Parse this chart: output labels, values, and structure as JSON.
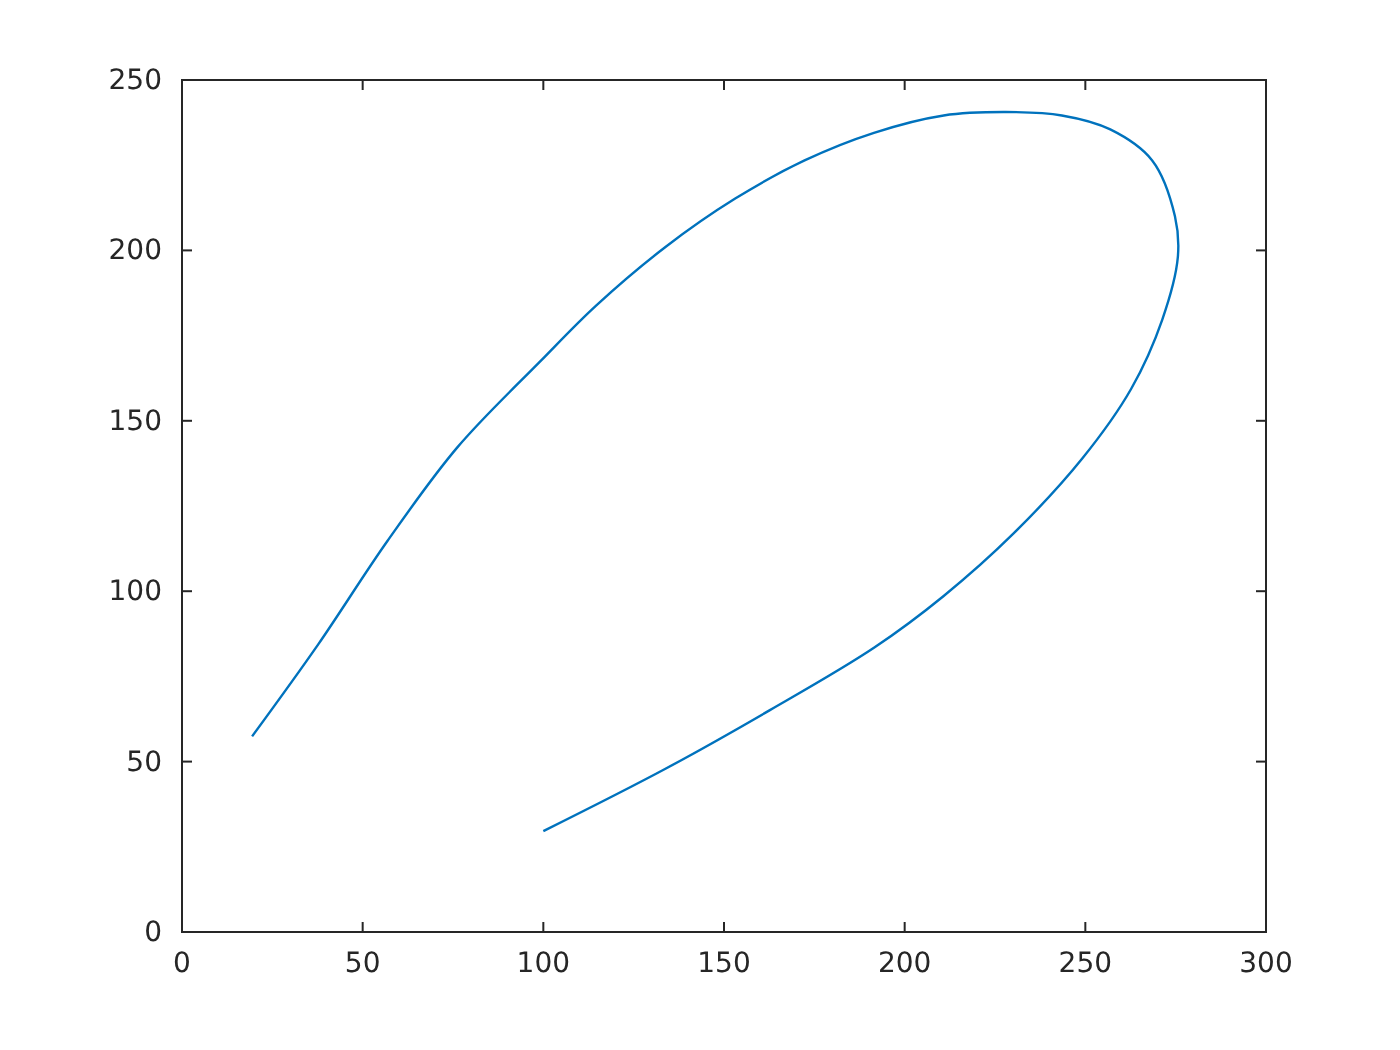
{
  "chart_data": {
    "type": "line",
    "xlim": [
      0,
      300
    ],
    "xticks": [
      0,
      50,
      100,
      150,
      200,
      250,
      300
    ],
    "ylim": [
      0,
      250
    ],
    "yticks": [
      0,
      50,
      100,
      150,
      200,
      250
    ],
    "marker": "none",
    "line_style": "solid",
    "series": [
      {
        "color": "#0072bd",
        "x": [
          100,
          133.8,
          162.7,
          191.5,
          210.8,
          230,
          249.2,
          262.7,
          271.3,
          275.6,
          274.8,
          268.5,
          256.9,
          243.5,
          228,
          210.8,
          191.5,
          172.3,
          153.1,
          133.8,
          114.6,
          99.2,
          76.2,
          56.9,
          37.7,
          19.4
        ],
        "values": [
          29.6,
          47.9,
          65.1,
          83.4,
          98.6,
          116.8,
          139,
          159.4,
          179.7,
          198,
          210,
          226.4,
          235.5,
          239.6,
          240.6,
          239.6,
          234.5,
          226.4,
          215.2,
          201,
          183.8,
          167.5,
          142.2,
          114.8,
          84.4,
          57.4
        ]
      }
    ]
  }
}
